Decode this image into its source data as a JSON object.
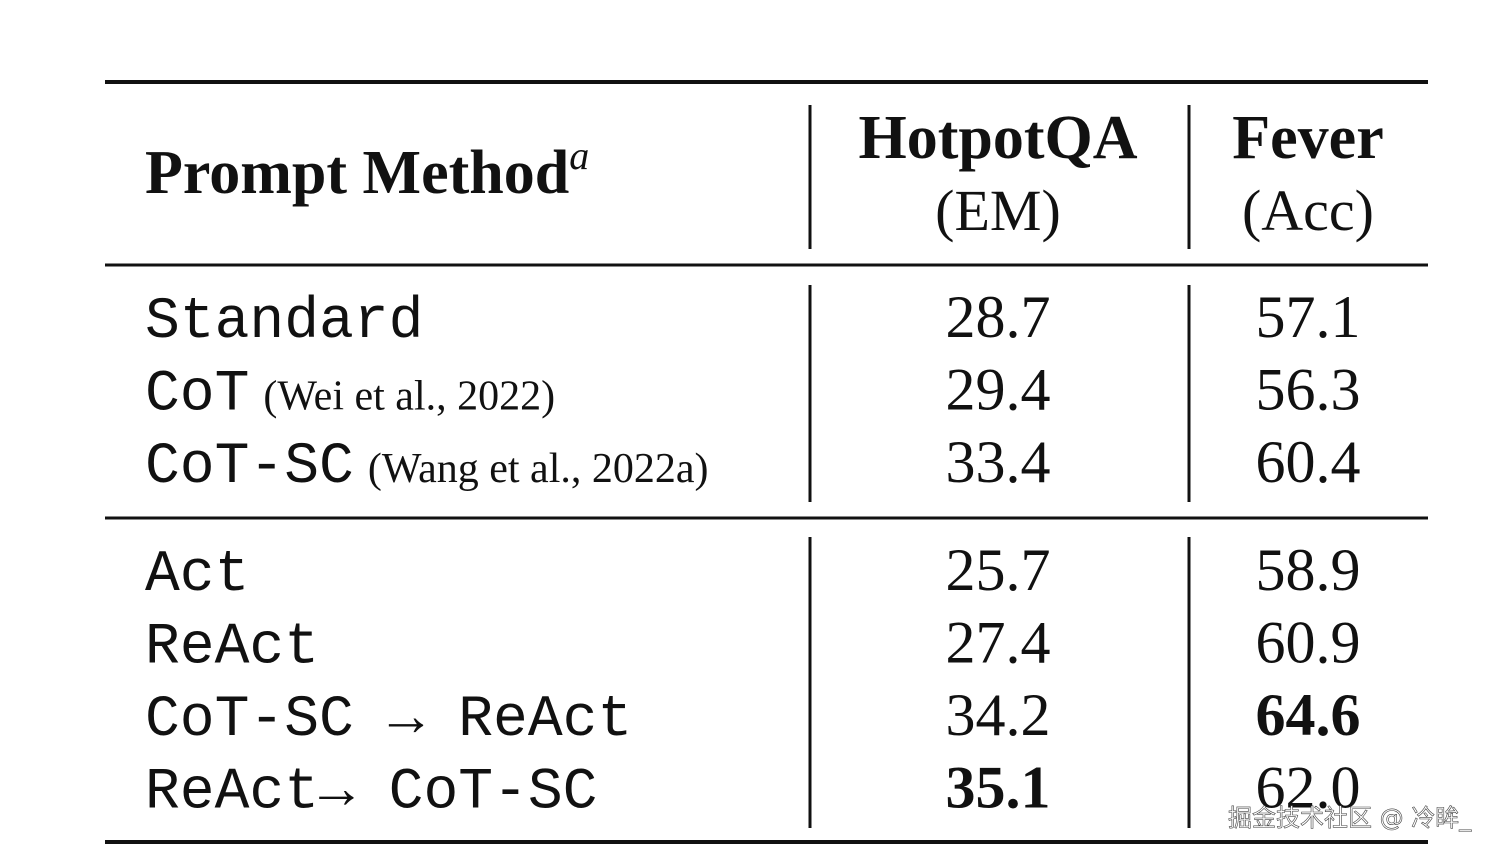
{
  "table": {
    "header": {
      "method": "Prompt Method",
      "method_sup": "a",
      "columns": [
        {
          "name": "HotpotQA",
          "metric": "(EM)"
        },
        {
          "name": "Fever",
          "metric": "(Acc)"
        }
      ]
    },
    "groups": [
      [
        {
          "method": "Standard",
          "cite": null,
          "values": [
            "28.7",
            "57.1"
          ],
          "bold": [
            false,
            false
          ]
        },
        {
          "method": "CoT",
          "cite": "(Wei et al., 2022)",
          "values": [
            "29.4",
            "56.3"
          ],
          "bold": [
            false,
            false
          ]
        },
        {
          "method": "CoT-SC",
          "cite": "(Wang et al., 2022a)",
          "values": [
            "33.4",
            "60.4"
          ],
          "bold": [
            false,
            false
          ]
        }
      ],
      [
        {
          "method": "Act",
          "cite": null,
          "values": [
            "25.7",
            "58.9"
          ],
          "bold": [
            false,
            false
          ]
        },
        {
          "method": "ReAct",
          "cite": null,
          "values": [
            "27.4",
            "60.9"
          ],
          "bold": [
            false,
            false
          ]
        },
        {
          "method": "CoT-SC → ReAct",
          "cite": null,
          "values": [
            "34.2",
            "64.6"
          ],
          "bold": [
            false,
            true
          ]
        },
        {
          "method": "ReAct→ CoT-SC",
          "cite": null,
          "values": [
            "35.1",
            "62.0"
          ],
          "bold": [
            true,
            false
          ]
        }
      ]
    ]
  },
  "watermark": "掘金技术社区 @ 冷眸_"
}
